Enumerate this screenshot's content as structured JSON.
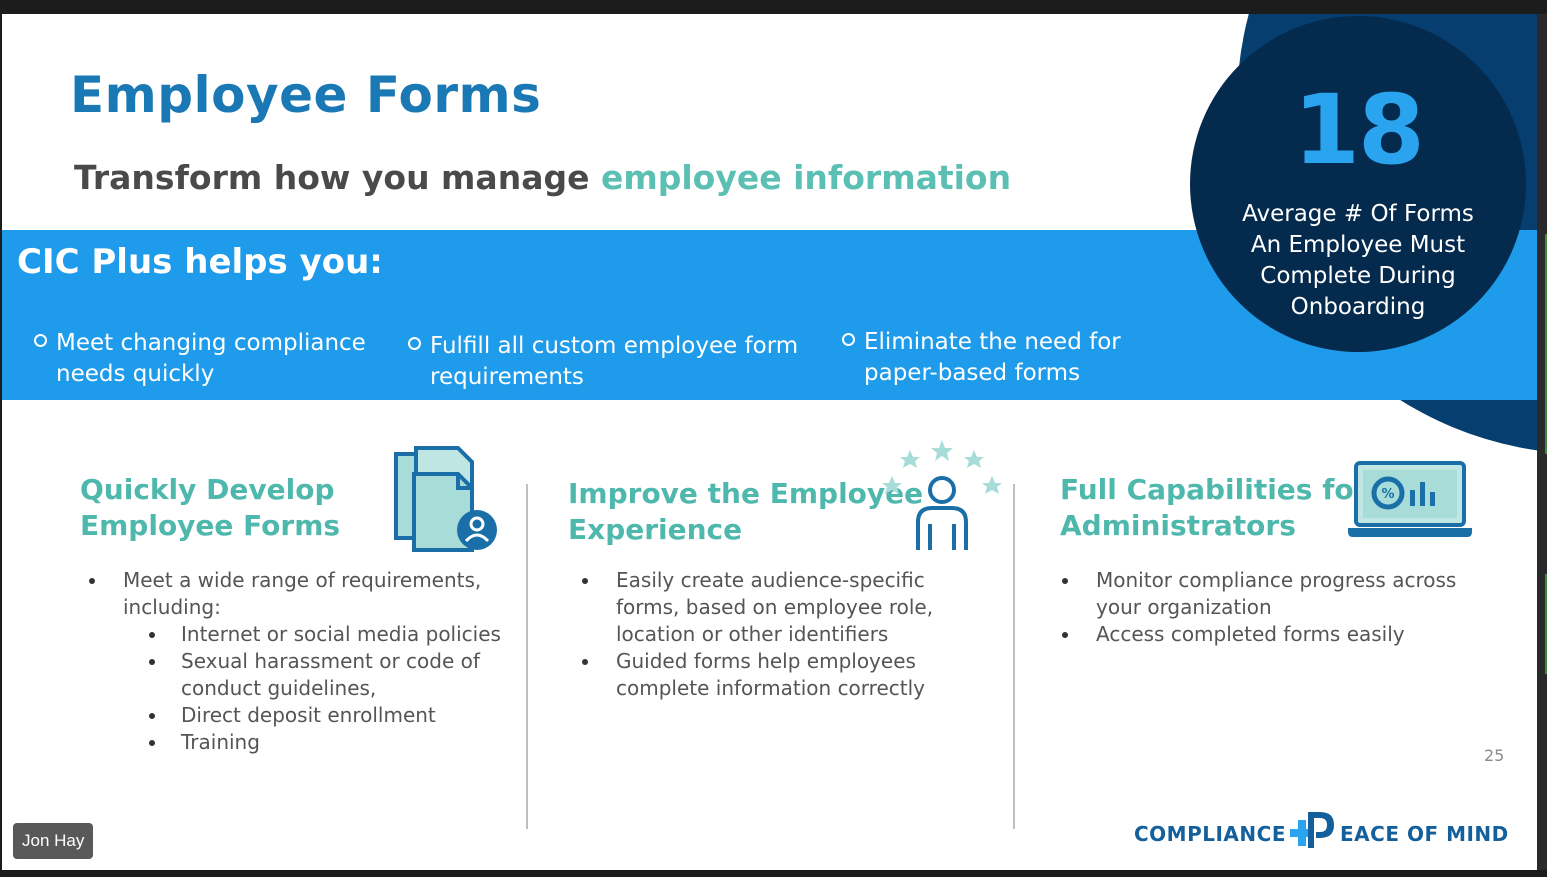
{
  "slide": {
    "title": "Employee Forms",
    "subtitle_part1": "Transform how you manage ",
    "subtitle_part2": "employee information",
    "band": {
      "title": "CIC Plus helps you:",
      "items": [
        "Meet changing compliance needs quickly",
        "Fulfill all custom employee form requirements",
        "Eliminate the need for paper-based forms"
      ]
    },
    "stat": {
      "number": "18",
      "label": "Average # Of Forms An Employee Must Complete During Onboarding"
    },
    "columns": [
      {
        "heading_line1": "Quickly Develop",
        "heading_line2": "Employee Forms",
        "icon": "documents-user-icon",
        "bullets": [
          "Meet a wide range of requirements, including:"
        ],
        "subbullets": [
          "Internet or social media policies",
          "Sexual harassment or code of conduct guidelines,",
          "Direct deposit enrollment",
          "Training"
        ]
      },
      {
        "heading_line1": "Improve the Employee",
        "heading_line2": "Experience",
        "icon": "person-stars-icon",
        "bullets": [
          "Easily create audience-specific forms, based on employee role, location or other identifiers",
          "Guided forms help employees complete information correctly"
        ]
      },
      {
        "heading_line1": "Full Capabilities for",
        "heading_line2": "Administrators",
        "icon": "laptop-chart-icon",
        "bullets": [
          "Monitor compliance progress across your organization",
          "Access completed forms easily"
        ]
      }
    ],
    "page_number": "25",
    "logo": {
      "left": "COMPLIANCE",
      "right": "EACE OF MIND"
    }
  },
  "participant": {
    "name": "Jon Hay"
  },
  "colors": {
    "title": "#1a78b4",
    "accent": "#5bbfb3",
    "band": "#1e9bea",
    "circle_dark": "#042a4d",
    "circle_outer": "#063f6f",
    "stat_number": "#2ba4f0"
  }
}
